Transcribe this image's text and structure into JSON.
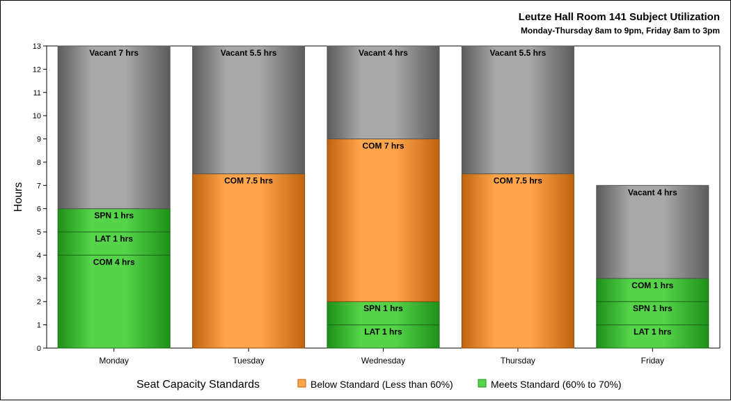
{
  "chart_data": {
    "type": "bar",
    "stacked": true,
    "title": "Leutze Hall Room 141 Subject Utilization",
    "subtitle": "Monday-Thursday 8am to 9pm, Friday 8am to 3pm",
    "ylabel": "Hours",
    "xlabel": "",
    "ylim": [
      0,
      13
    ],
    "yticks": [
      0,
      1,
      2,
      3,
      4,
      5,
      6,
      7,
      8,
      9,
      10,
      11,
      12,
      13
    ],
    "categories": [
      "Monday",
      "Tuesday",
      "Wednesday",
      "Thursday",
      "Friday"
    ],
    "bars": [
      {
        "category": "Monday",
        "segments": [
          {
            "label": "COM 4 hrs",
            "value": 4,
            "status": "meets"
          },
          {
            "label": "LAT 1 hrs",
            "value": 1,
            "status": "meets"
          },
          {
            "label": "SPN 1 hrs",
            "value": 1,
            "status": "meets"
          },
          {
            "label": "Vacant 7 hrs",
            "value": 7,
            "status": "vacant"
          }
        ]
      },
      {
        "category": "Tuesday",
        "segments": [
          {
            "label": "COM 7.5 hrs",
            "value": 7.5,
            "status": "below"
          },
          {
            "label": "Vacant 5.5 hrs",
            "value": 5.5,
            "status": "vacant"
          }
        ]
      },
      {
        "category": "Wednesday",
        "segments": [
          {
            "label": "LAT 1 hrs",
            "value": 1,
            "status": "meets"
          },
          {
            "label": "SPN 1 hrs",
            "value": 1,
            "status": "meets"
          },
          {
            "label": "COM 7 hrs",
            "value": 7,
            "status": "below"
          },
          {
            "label": "Vacant 4 hrs",
            "value": 4,
            "status": "vacant"
          }
        ]
      },
      {
        "category": "Thursday",
        "segments": [
          {
            "label": "COM 7.5 hrs",
            "value": 7.5,
            "status": "below"
          },
          {
            "label": "Vacant 5.5 hrs",
            "value": 5.5,
            "status": "vacant"
          }
        ]
      },
      {
        "category": "Friday",
        "segments": [
          {
            "label": "LAT 1 hrs",
            "value": 1,
            "status": "meets"
          },
          {
            "label": "SPN 1 hrs",
            "value": 1,
            "status": "meets"
          },
          {
            "label": "COM 1 hrs",
            "value": 1,
            "status": "meets"
          },
          {
            "label": "Vacant 4 hrs",
            "value": 4,
            "status": "vacant"
          }
        ]
      }
    ],
    "legend": {
      "title": "Seat Capacity Standards",
      "position": "bottom",
      "entries": [
        {
          "key": "below",
          "label": "Below Standard (Less than 60%)"
        },
        {
          "key": "meets",
          "label": "Meets Standard (60% to 70%)"
        }
      ]
    },
    "colors": {
      "below": {
        "light": "#ffa64d",
        "dark": "#c0640f"
      },
      "meets": {
        "light": "#55d44a",
        "dark": "#1f8f1a"
      },
      "vacant": {
        "light": "#a8a8a8",
        "dark": "#5c5c5c"
      }
    },
    "grid": false
  }
}
